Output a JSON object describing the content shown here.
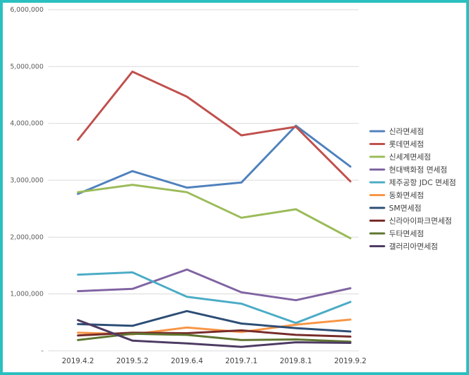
{
  "chart_data": {
    "type": "line",
    "title": "",
    "xlabel": "",
    "ylabel": "",
    "categories": [
      "2019.4.2",
      "2019.5.2",
      "2019.6.4",
      "2019.7.1",
      "2019.8.1",
      "2019.9.2"
    ],
    "ylim": [
      0,
      6000000
    ],
    "yticks": [
      0,
      1000000,
      2000000,
      3000000,
      4000000,
      5000000,
      6000000
    ],
    "ytick_labels": [
      "-",
      "1,000,000",
      "2,000,000",
      "3,000,000",
      "4,000,000",
      "5,000,000",
      "6,000,000"
    ],
    "grid": true,
    "legend_position": "right",
    "series": [
      {
        "name": "신라면세점",
        "color": "#4f81bd",
        "values": [
          2760000,
          3160000,
          2870000,
          2960000,
          3960000,
          3240000
        ]
      },
      {
        "name": "롯데면세점",
        "color": "#c0504d",
        "values": [
          3710000,
          4910000,
          4470000,
          3790000,
          3940000,
          2980000
        ]
      },
      {
        "name": "신세계면세점",
        "color": "#9bbb59",
        "values": [
          2790000,
          2920000,
          2790000,
          2340000,
          2490000,
          1980000
        ]
      },
      {
        "name": "현대백화점 면세점",
        "color": "#8064a2",
        "values": [
          1050000,
          1090000,
          1430000,
          1030000,
          890000,
          1100000
        ]
      },
      {
        "name": "제주공항 JDC 면세점",
        "color": "#4bacc6",
        "values": [
          1340000,
          1380000,
          950000,
          830000,
          490000,
          860000
        ]
      },
      {
        "name": "동화면세점",
        "color": "#f79646",
        "values": [
          320000,
          290000,
          410000,
          330000,
          460000,
          550000
        ]
      },
      {
        "name": "SM면세점",
        "color": "#2c4d75",
        "values": [
          470000,
          440000,
          700000,
          480000,
          400000,
          340000
        ]
      },
      {
        "name": "신라아이파크면세점",
        "color": "#772c2a",
        "values": [
          270000,
          320000,
          310000,
          360000,
          280000,
          250000
        ]
      },
      {
        "name": "두타면세점",
        "color": "#5f7530",
        "values": [
          190000,
          300000,
          280000,
          190000,
          200000,
          160000
        ]
      },
      {
        "name": "갤러리아면세점",
        "color": "#4d3b62",
        "values": [
          540000,
          180000,
          130000,
          70000,
          150000,
          140000
        ]
      }
    ]
  }
}
